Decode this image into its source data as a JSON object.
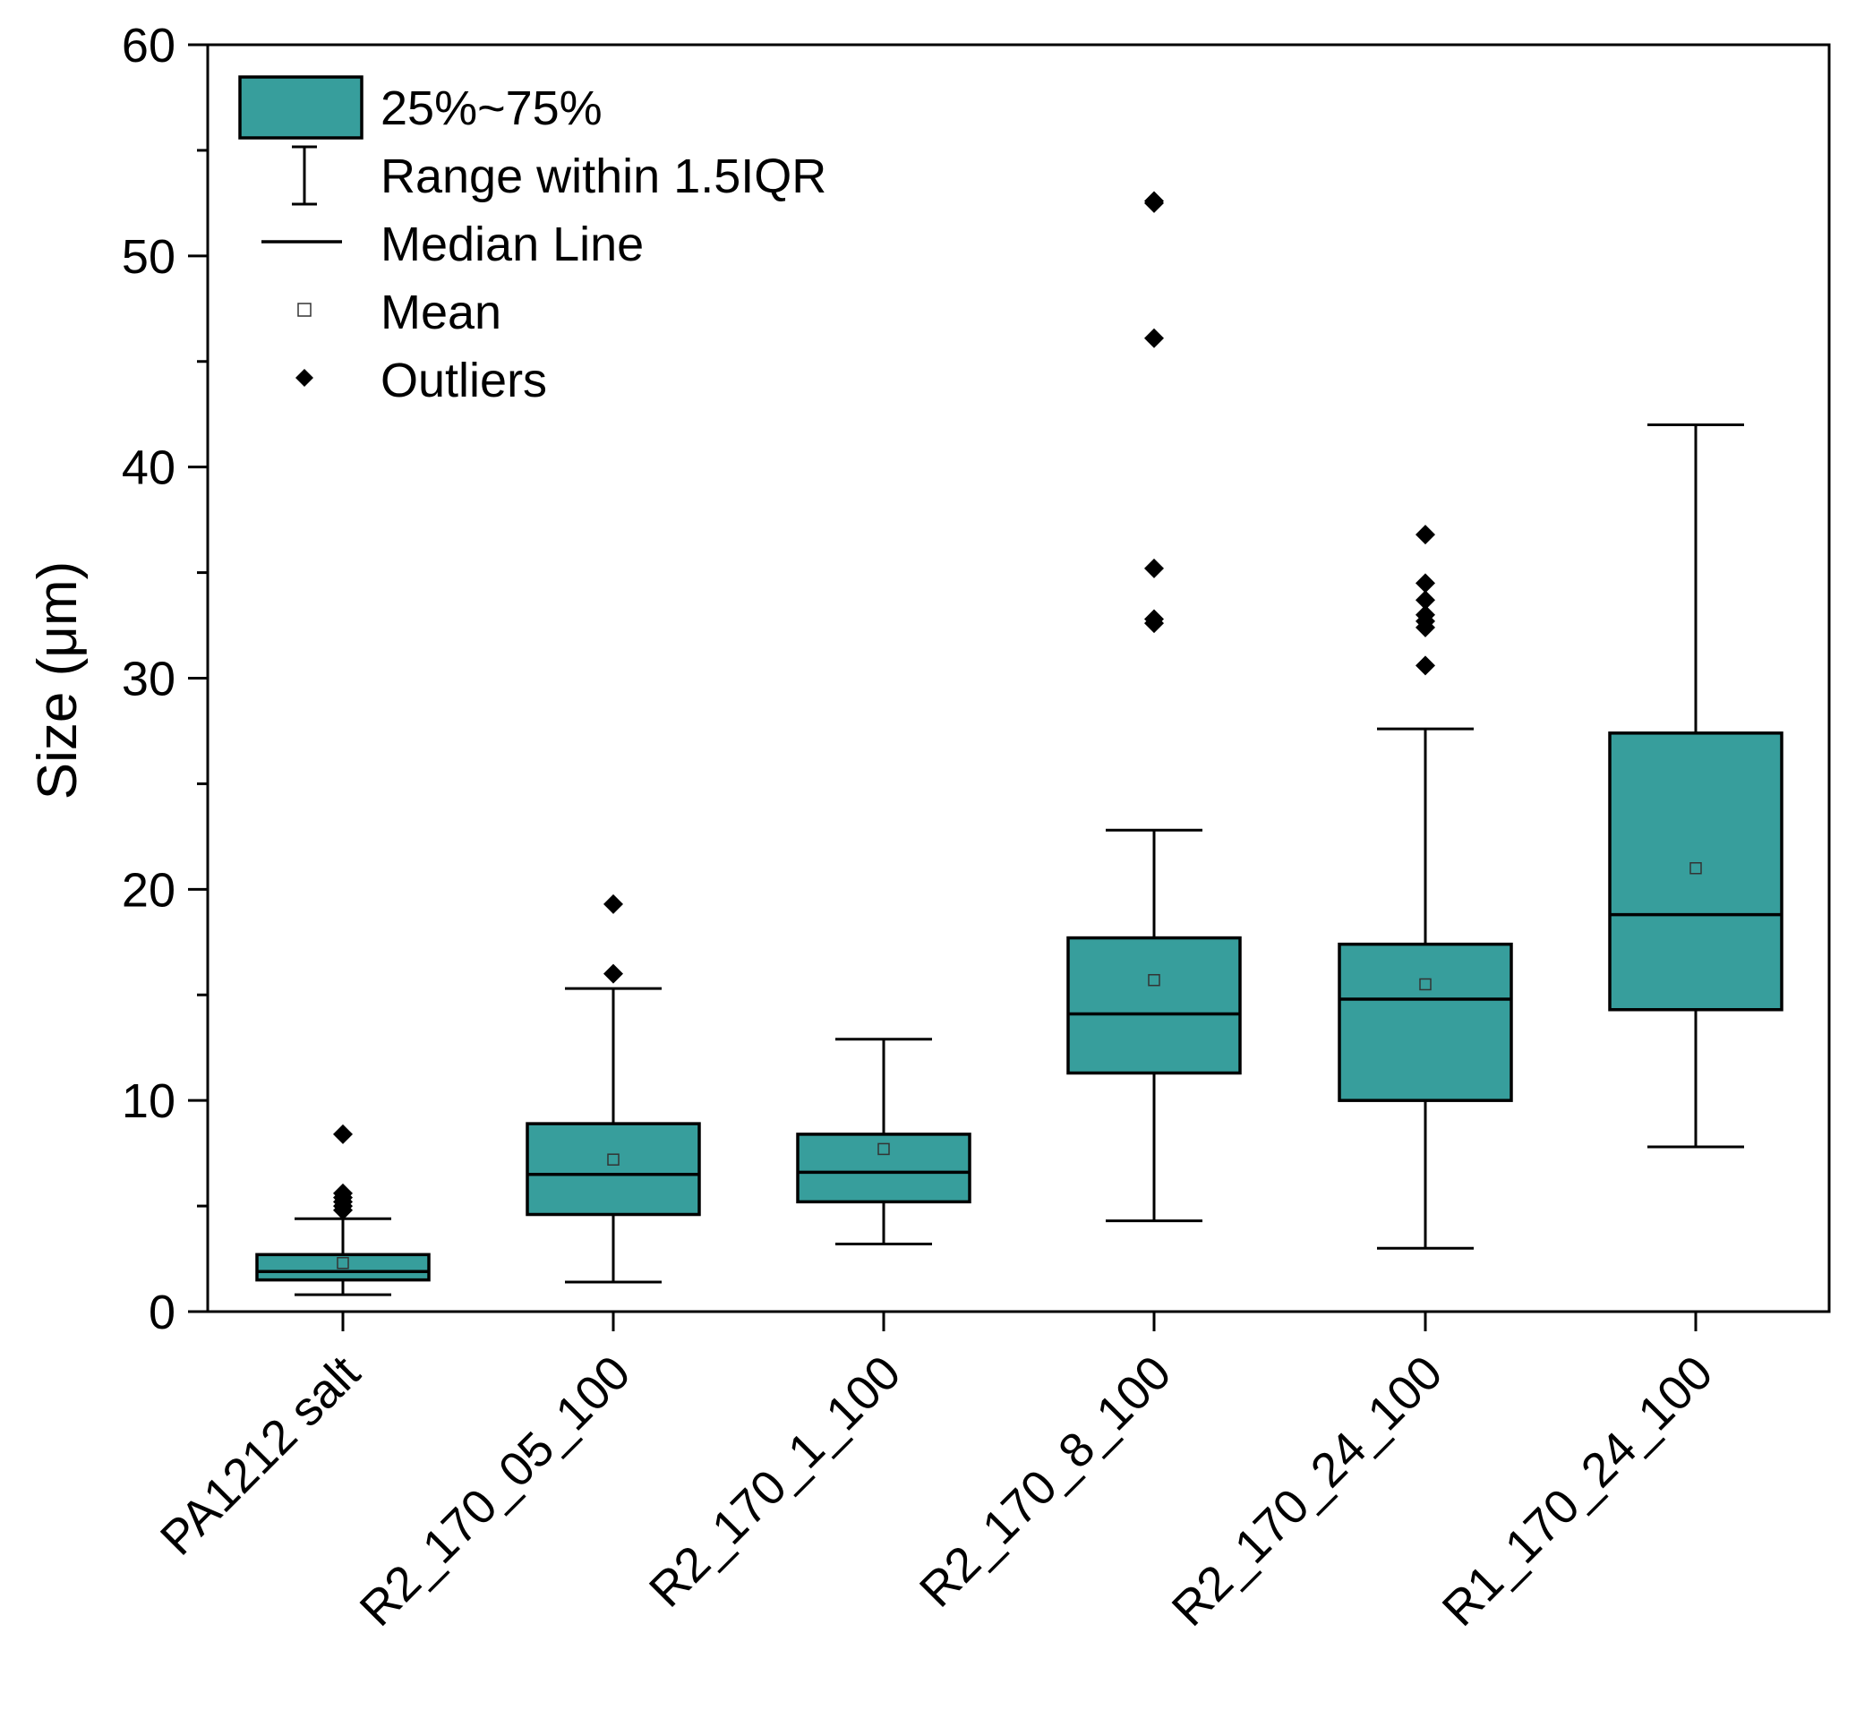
{
  "chart_data": {
    "type": "box",
    "ylabel": "Size (μm)",
    "xlabel": "",
    "ylim": [
      0,
      60
    ],
    "yticks": [
      0,
      10,
      20,
      30,
      40,
      50,
      60
    ],
    "y_minor_step": 5,
    "grid": false,
    "legend_position": "top-left",
    "box_color": "#379e9c",
    "legend": [
      {
        "key": "box",
        "label": "25%~75%"
      },
      {
        "key": "whisker",
        "label": "Range within 1.5IQR"
      },
      {
        "key": "median",
        "label": "Median Line"
      },
      {
        "key": "mean",
        "label": "Mean"
      },
      {
        "key": "outlier",
        "label": "Outliers"
      }
    ],
    "categories": [
      "PA1212 salt",
      "R2_170_05_100",
      "R2_170_1_100",
      "R2_170_8_100",
      "R2_170_24_100",
      "R1_170_24_100"
    ],
    "boxes": [
      {
        "whisker_low": 0.8,
        "q1": 1.5,
        "median": 1.9,
        "q3": 2.7,
        "whisker_high": 4.4,
        "mean": 2.3,
        "outliers": [
          4.8,
          5.0,
          5.2,
          5.4,
          5.6,
          8.4
        ]
      },
      {
        "whisker_low": 1.4,
        "q1": 4.6,
        "median": 6.5,
        "q3": 8.9,
        "whisker_high": 15.3,
        "mean": 7.2,
        "outliers": [
          16.0,
          19.3
        ]
      },
      {
        "whisker_low": 3.2,
        "q1": 5.2,
        "median": 6.6,
        "q3": 8.4,
        "whisker_high": 12.9,
        "mean": 7.7,
        "outliers": []
      },
      {
        "whisker_low": 4.3,
        "q1": 11.3,
        "median": 14.1,
        "q3": 17.7,
        "whisker_high": 22.8,
        "mean": 15.7,
        "outliers": [
          32.6,
          32.8,
          35.2,
          46.1,
          52.5,
          52.6
        ]
      },
      {
        "whisker_low": 3.0,
        "q1": 10.0,
        "median": 14.8,
        "q3": 17.4,
        "whisker_high": 27.6,
        "mean": 15.5,
        "outliers": [
          30.6,
          32.4,
          32.7,
          33.0,
          33.7,
          34.5,
          36.8
        ]
      },
      {
        "whisker_low": 7.8,
        "q1": 14.3,
        "median": 18.8,
        "q3": 27.4,
        "whisker_high": 42.0,
        "mean": 21.0,
        "outliers": []
      }
    ]
  }
}
